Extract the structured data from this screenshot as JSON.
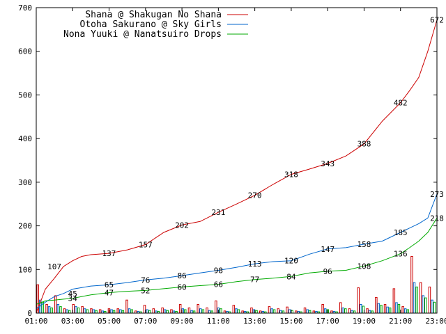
{
  "chart_data": {
    "type": "line",
    "xlim": [
      1,
      23
    ],
    "ylim": [
      0,
      700
    ],
    "x_tick_labels": [
      {
        "x": 1,
        "label": "01:00"
      },
      {
        "x": 3,
        "label": "03:00"
      },
      {
        "x": 5,
        "label": "05:00"
      },
      {
        "x": 7,
        "label": "07:00"
      },
      {
        "x": 9,
        "label": "09:00"
      },
      {
        "x": 11,
        "label": "11:00"
      },
      {
        "x": 13,
        "label": "13:00"
      },
      {
        "x": 15,
        "label": "15:00"
      },
      {
        "x": 17,
        "label": "17:00"
      },
      {
        "x": 19,
        "label": "19:00"
      },
      {
        "x": 21,
        "label": "21:00"
      },
      {
        "x": 23,
        "label": "23:00"
      }
    ],
    "y_ticks": [
      0,
      100,
      200,
      300,
      400,
      500,
      600,
      700
    ],
    "y_tick_labels": [
      "0",
      "100",
      "200",
      "300",
      "400",
      "500",
      "600",
      "700"
    ],
    "grid": false,
    "legend_position": "top-left",
    "series": [
      {
        "name": "Shana @ Shakugan No Shana",
        "color": "#cc0000",
        "x": [
          1,
          1.5,
          2,
          2.5,
          3,
          3.5,
          4,
          5,
          6,
          7,
          8,
          9,
          10,
          11,
          12,
          13,
          14,
          15,
          16,
          17,
          18,
          19,
          20,
          21,
          21.5,
          22,
          22.5,
          23
        ],
        "y": [
          0,
          55,
          80,
          107,
          120,
          130,
          134,
          137,
          145,
          157,
          185,
          202,
          210,
          231,
          250,
          270,
          295,
          318,
          330,
          343,
          360,
          388,
          440,
          482,
          510,
          540,
          600,
          672
        ],
        "labels": [
          {
            "x": 2,
            "y": 107,
            "text": "107"
          },
          {
            "x": 5,
            "y": 137,
            "text": "137"
          },
          {
            "x": 7,
            "y": 157,
            "text": "157"
          },
          {
            "x": 9,
            "y": 202,
            "text": "202"
          },
          {
            "x": 11,
            "y": 231,
            "text": "231"
          },
          {
            "x": 13,
            "y": 270,
            "text": "270"
          },
          {
            "x": 15,
            "y": 318,
            "text": "318"
          },
          {
            "x": 17,
            "y": 343,
            "text": "343"
          },
          {
            "x": 19,
            "y": 388,
            "text": "388"
          },
          {
            "x": 21,
            "y": 482,
            "text": "482"
          },
          {
            "x": 23,
            "y": 672,
            "text": "672"
          }
        ]
      },
      {
        "name": "Otoha Sakurano @ Sky Girls",
        "color": "#0066cc",
        "x": [
          1,
          1.5,
          2,
          2.5,
          3,
          4,
          5,
          6,
          7,
          8,
          9,
          10,
          11,
          12,
          13,
          14,
          15,
          16,
          17,
          18,
          19,
          20,
          21,
          21.5,
          22,
          22.5,
          23
        ],
        "y": [
          10,
          25,
          38,
          45,
          55,
          62,
          65,
          70,
          76,
          80,
          86,
          92,
          98,
          105,
          113,
          118,
          120,
          135,
          147,
          150,
          158,
          165,
          185,
          195,
          205,
          218,
          273
        ],
        "labels": [
          {
            "x": 3,
            "y": 45,
            "text": "45"
          },
          {
            "x": 5,
            "y": 65,
            "text": "65"
          },
          {
            "x": 7,
            "y": 76,
            "text": "76"
          },
          {
            "x": 9,
            "y": 86,
            "text": "86"
          },
          {
            "x": 11,
            "y": 98,
            "text": "98"
          },
          {
            "x": 13,
            "y": 113,
            "text": "113"
          },
          {
            "x": 15,
            "y": 120,
            "text": "120"
          },
          {
            "x": 17,
            "y": 147,
            "text": "147"
          },
          {
            "x": 19,
            "y": 158,
            "text": "158"
          },
          {
            "x": 21,
            "y": 185,
            "text": "185"
          },
          {
            "x": 23,
            "y": 273,
            "text": "273"
          }
        ]
      },
      {
        "name": "Nona Yuuki @ Nanatsuiro Drops",
        "color": "#00aa00",
        "x": [
          1,
          1.5,
          2,
          2.5,
          3,
          4,
          5,
          6,
          7,
          8,
          9,
          10,
          11,
          12,
          13,
          14,
          15,
          16,
          17,
          18,
          19,
          20,
          21,
          21.5,
          22,
          22.5,
          23
        ],
        "y": [
          20,
          28,
          30,
          32,
          34,
          42,
          47,
          50,
          52,
          56,
          60,
          63,
          66,
          72,
          77,
          80,
          84,
          92,
          96,
          98,
          108,
          120,
          136,
          150,
          165,
          185,
          218
        ],
        "labels": [
          {
            "x": 3,
            "y": 34,
            "text": "34"
          },
          {
            "x": 5,
            "y": 47,
            "text": "47"
          },
          {
            "x": 7,
            "y": 52,
            "text": "52"
          },
          {
            "x": 9,
            "y": 60,
            "text": "60"
          },
          {
            "x": 11,
            "y": 66,
            "text": "66"
          },
          {
            "x": 13,
            "y": 77,
            "text": "77"
          },
          {
            "x": 15,
            "y": 84,
            "text": "84"
          },
          {
            "x": 17,
            "y": 96,
            "text": "96"
          },
          {
            "x": 19,
            "y": 108,
            "text": "108"
          },
          {
            "x": 21,
            "y": 136,
            "text": "136"
          },
          {
            "x": 23,
            "y": 218,
            "text": "218"
          }
        ]
      }
    ],
    "bars": [
      {
        "color": "#cc0000",
        "values": [
          65,
          20,
          40,
          10,
          20,
          15,
          10,
          8,
          10,
          10,
          30,
          5,
          18,
          10,
          12,
          8,
          20,
          12,
          20,
          12,
          28,
          5,
          18,
          5,
          12,
          5,
          15,
          10,
          14,
          5,
          12,
          5,
          20,
          5,
          24,
          10,
          58,
          10,
          36,
          20,
          56,
          15,
          130,
          70,
          60
        ]
      },
      {
        "color": "#0066cc",
        "values": [
          30,
          15,
          20,
          8,
          15,
          10,
          8,
          5,
          8,
          8,
          10,
          4,
          8,
          5,
          8,
          5,
          10,
          6,
          10,
          6,
          12,
          4,
          10,
          4,
          8,
          4,
          10,
          6,
          8,
          4,
          8,
          4,
          10,
          4,
          12,
          6,
          20,
          6,
          22,
          14,
          24,
          10,
          70,
          40,
          30
        ]
      },
      {
        "color": "#00aa00",
        "values": [
          25,
          12,
          15,
          6,
          12,
          8,
          6,
          4,
          6,
          6,
          8,
          3,
          6,
          4,
          6,
          4,
          8,
          5,
          8,
          5,
          10,
          3,
          8,
          3,
          6,
          3,
          8,
          5,
          6,
          3,
          6,
          3,
          8,
          3,
          10,
          5,
          16,
          5,
          18,
          12,
          20,
          8,
          60,
          35,
          25
        ]
      }
    ]
  }
}
